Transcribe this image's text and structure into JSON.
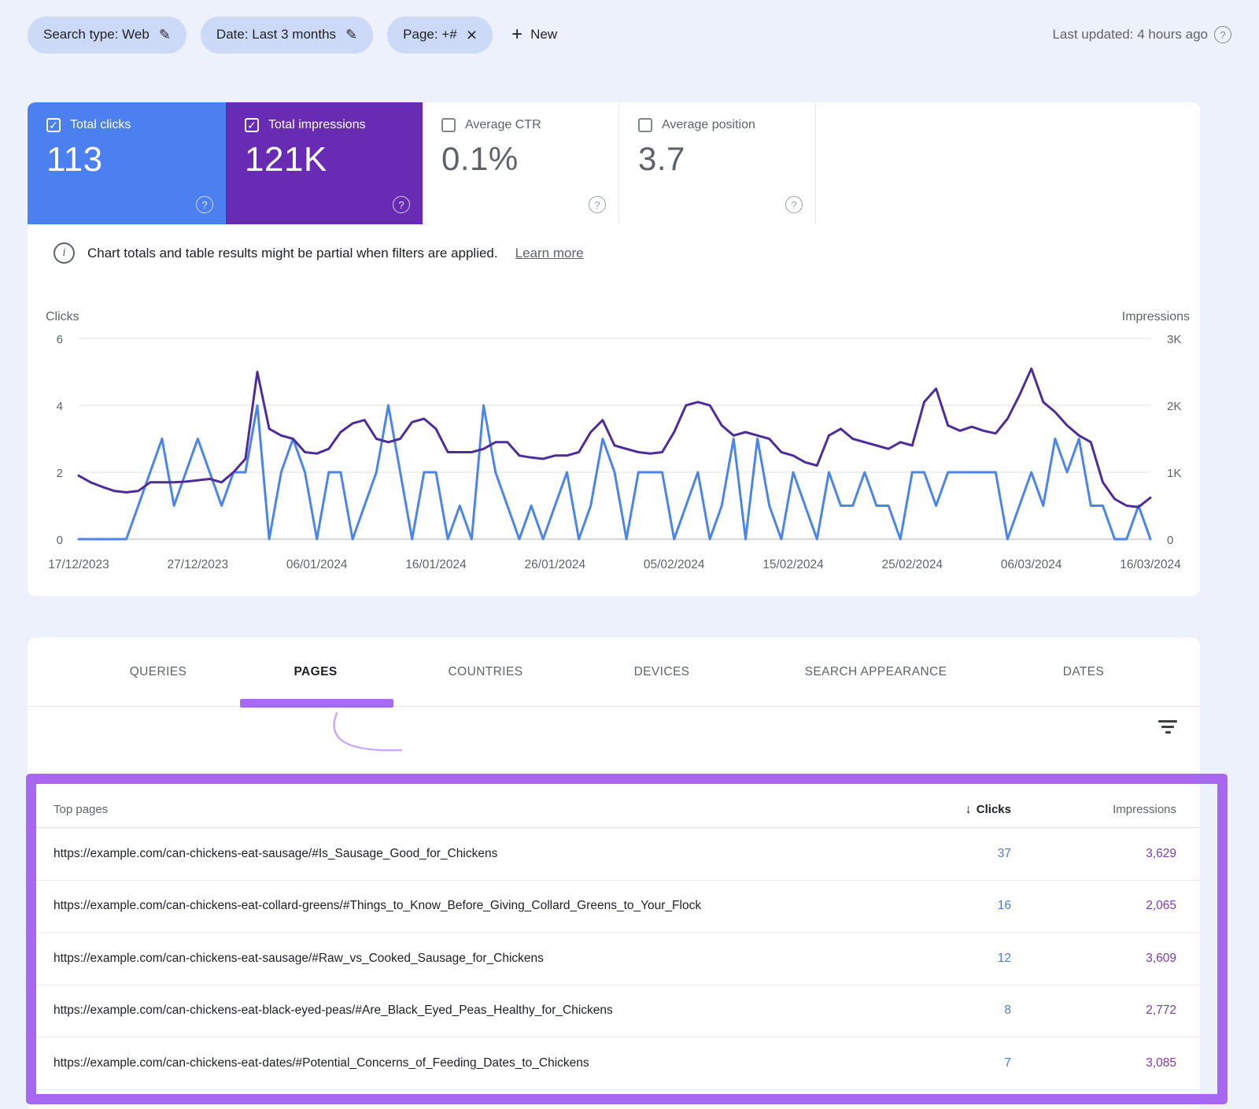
{
  "toolbar": {
    "chips": [
      {
        "label": "Search type: Web",
        "icon": "edit"
      },
      {
        "label": "Date: Last 3 months",
        "icon": "edit"
      },
      {
        "label": "Page: +#",
        "icon": "close"
      }
    ],
    "new_button": {
      "label": "New",
      "icon": "plus"
    },
    "last_updated": "Last updated: 4 hours ago"
  },
  "metrics": {
    "cards": [
      {
        "label": "Total clicks",
        "value": "113",
        "checked": true,
        "bg": "#4c80f1",
        "fg": "#ffffff"
      },
      {
        "label": "Total impressions",
        "value": "121K",
        "checked": true,
        "bg": "#682bb4",
        "fg": "#ffffff"
      },
      {
        "label": "Average CTR",
        "value": "0.1%",
        "checked": false,
        "bg": "#ffffff",
        "fg": "#5f6368"
      },
      {
        "label": "Average position",
        "value": "3.7",
        "checked": false,
        "bg": "#ffffff",
        "fg": "#5f6368"
      }
    ]
  },
  "notice": {
    "text": "Chart totals and table results might be partial when filters are applied.",
    "link": "Learn more"
  },
  "chart_data": {
    "type": "line",
    "left_axis": {
      "label": "Clicks",
      "ticks": [
        "6",
        "4",
        "2",
        "0"
      ],
      "max": 6
    },
    "right_axis": {
      "label": "Impressions",
      "ticks": [
        "3K",
        "2K",
        "1K",
        "0"
      ],
      "max": 3000
    },
    "x_tick_labels": [
      "17/12/2023",
      "27/12/2023",
      "06/01/2024",
      "16/01/2024",
      "26/01/2024",
      "05/02/2024",
      "15/02/2024",
      "25/02/2024",
      "06/03/2024",
      "16/03/2024"
    ],
    "grid": "horizontal",
    "legend_position": "none",
    "series": [
      {
        "name": "Clicks",
        "axis": "left",
        "color": "#4c85e8",
        "values": [
          0,
          0,
          0,
          0,
          0,
          1,
          2,
          3,
          1,
          2,
          3,
          2,
          1,
          2,
          2,
          4,
          0,
          2,
          3,
          2,
          0,
          2,
          2,
          0,
          1,
          2,
          4,
          2,
          0,
          2,
          2,
          0,
          1,
          0,
          4,
          2,
          1,
          0,
          1,
          0,
          1,
          2,
          0,
          1,
          3,
          2,
          0,
          2,
          2,
          2,
          0,
          1,
          2,
          0,
          1,
          3,
          0,
          3,
          1,
          0,
          2,
          1,
          0,
          2,
          1,
          1,
          2,
          1,
          1,
          0,
          2,
          2,
          1,
          2,
          2,
          2,
          2,
          2,
          0,
          1,
          2,
          1,
          3,
          2,
          3,
          1,
          1,
          0,
          0,
          1,
          0
        ]
      },
      {
        "name": "Impressions",
        "axis": "right",
        "color": "#4d2d9a",
        "values": [
          950,
          850,
          780,
          720,
          700,
          720,
          850,
          850,
          850,
          860,
          880,
          900,
          850,
          1000,
          1200,
          2500,
          1650,
          1550,
          1500,
          1300,
          1280,
          1350,
          1600,
          1730,
          1780,
          1500,
          1450,
          1500,
          1750,
          1800,
          1650,
          1300,
          1300,
          1300,
          1350,
          1450,
          1450,
          1250,
          1220,
          1200,
          1250,
          1250,
          1300,
          1600,
          1780,
          1400,
          1350,
          1300,
          1280,
          1300,
          1600,
          2000,
          2050,
          2000,
          1700,
          1550,
          1600,
          1550,
          1500,
          1300,
          1250,
          1150,
          1100,
          1550,
          1650,
          1500,
          1450,
          1400,
          1350,
          1450,
          1400,
          2050,
          2250,
          1700,
          1620,
          1680,
          1620,
          1580,
          1800,
          2150,
          2550,
          2050,
          1900,
          1700,
          1550,
          1450,
          850,
          600,
          500,
          480,
          620
        ]
      }
    ]
  },
  "tabs": [
    {
      "label": "QUERIES",
      "active": false
    },
    {
      "label": "PAGES",
      "active": true
    },
    {
      "label": "COUNTRIES",
      "active": false
    },
    {
      "label": "DEVICES",
      "active": false
    },
    {
      "label": "SEARCH APPEARANCE",
      "active": false
    },
    {
      "label": "DATES",
      "active": false
    }
  ],
  "table": {
    "columns": {
      "pages": "Top pages",
      "clicks": "Clicks",
      "impressions": "Impressions"
    },
    "sort_icon": "arrow-down",
    "rows": [
      {
        "url": "https://example.com/can-chickens-eat-sausage/#Is_Sausage_Good_for_Chickens",
        "clicks": "37",
        "impressions": "3,629"
      },
      {
        "url": "https://example.com/can-chickens-eat-collard-greens/#Things_to_Know_Before_Giving_Collard_Greens_to_Your_Flock",
        "clicks": "16",
        "impressions": "2,065"
      },
      {
        "url": "https://example.com/can-chickens-eat-sausage/#Raw_vs_Cooked_Sausage_for_Chickens",
        "clicks": "12",
        "impressions": "3,609"
      },
      {
        "url": "https://example.com/can-chickens-eat-black-eyed-peas/#Are_Black_Eyed_Peas_Healthy_for_Chickens",
        "clicks": "8",
        "impressions": "2,772"
      },
      {
        "url": "https://example.com/can-chickens-eat-dates/#Potential_Concerns_of_Feeding_Dates_to_Chickens",
        "clicks": "7",
        "impressions": "3,085"
      }
    ]
  },
  "annotation": {
    "highlight_color": "#a767f1"
  }
}
